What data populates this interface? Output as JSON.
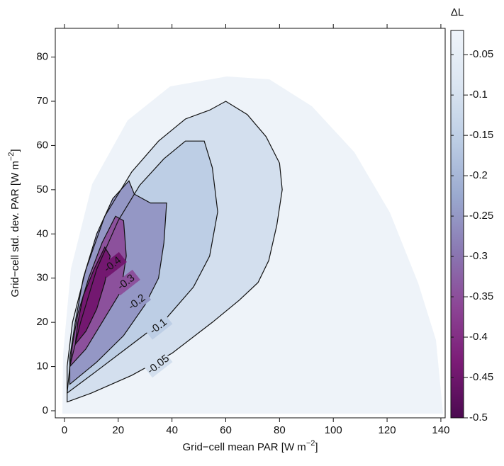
{
  "chart_data": {
    "type": "contour",
    "x_label": {
      "text": "Grid−cell mean PAR [W m",
      "sup": "−2",
      "end": "]"
    },
    "y_label": {
      "text": "Grid−cell std. dev. PAR [W m",
      "sup": "−2",
      "end": "]"
    },
    "colorbar_title": "ΔL",
    "xlim": [
      -3.4,
      141.6
    ],
    "ylim": [
      -1.6,
      86.5
    ],
    "xticks": [
      0,
      20,
      40,
      60,
      80,
      100,
      120,
      140
    ],
    "yticks": [
      0,
      10,
      20,
      30,
      40,
      50,
      60,
      70,
      80
    ],
    "clim": [
      -0.5,
      -0.02
    ],
    "cticks": [
      -0.05,
      -0.1,
      -0.15,
      -0.2,
      -0.25,
      -0.3,
      -0.35,
      -0.4,
      -0.45,
      -0.5
    ],
    "colormap": [
      "#4b0a50",
      "#7b1b76",
      "#8c4595",
      "#8a78b2",
      "#9aa9cf",
      "#bccde4",
      "#dbe5f1",
      "#eff4fa"
    ],
    "line_color": "#111111",
    "contours": [
      {
        "level": -0.05,
        "x": [
          1,
          10,
          25,
          40,
          55,
          65,
          72,
          76,
          79,
          81,
          80,
          75,
          68,
          60,
          54,
          45,
          35,
          25,
          15,
          8,
          3,
          1
        ],
        "y": [
          2,
          4,
          8,
          13,
          20,
          25,
          29,
          34,
          42,
          50,
          56,
          62,
          67,
          70,
          68,
          66,
          61,
          54,
          44,
          32,
          20,
          10
        ]
      },
      {
        "level": -0.1,
        "x": [
          1,
          12,
          25,
          38,
          48,
          54,
          57,
          55,
          52,
          45,
          37,
          28,
          20,
          12,
          6,
          2
        ],
        "y": [
          4,
          9,
          15,
          21,
          28,
          35,
          45,
          55,
          61,
          61,
          57,
          51,
          43,
          32,
          20,
          10
        ]
      },
      {
        "level": -0.2,
        "x": [
          2,
          12,
          22,
          30,
          35,
          37,
          38,
          32,
          26,
          24,
          18,
          12,
          7,
          4,
          2
        ],
        "y": [
          6,
          11,
          17,
          24,
          30,
          38,
          47,
          47,
          49,
          52,
          48,
          40,
          30,
          20,
          12
        ]
      },
      {
        "level": -0.3,
        "x": [
          2,
          8,
          14,
          21,
          23,
          22,
          19,
          14,
          9,
          5,
          3
        ],
        "y": [
          10,
          14,
          20,
          27,
          35,
          43,
          44,
          38,
          30,
          22,
          15
        ]
      },
      {
        "level": -0.4,
        "x": [
          4,
          8,
          12,
          15,
          17,
          15,
          11,
          7,
          5
        ],
        "y": [
          15,
          18,
          23,
          29,
          35,
          37,
          32,
          26,
          20
        ]
      }
    ]
  }
}
